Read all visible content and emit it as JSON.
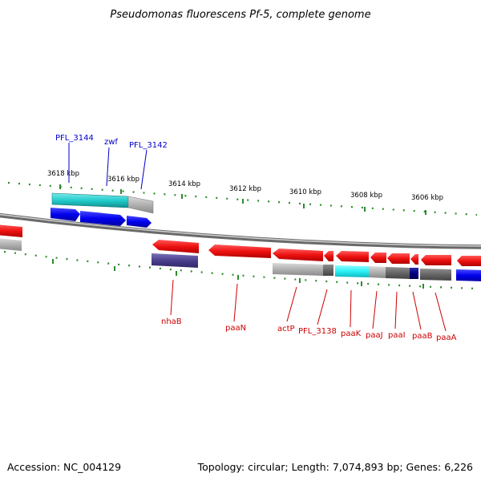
{
  "title": "Pseudomonas fluorescens Pf-5, complete genome",
  "footer": {
    "accession": "Accession: NC_004129",
    "summary": "Topology: circular; Length: 7,074,893 bp; Genes: 6,226"
  },
  "colors": {
    "tick": "#2e8b2e",
    "backbone": "#8a8a8a",
    "forward_label": "#0000cc",
    "reverse_label": "#cc0000",
    "red_gene": "#ee1111",
    "blue_gene": "#0000ee",
    "cyan_feature": "#22cccc",
    "grey_feature": "#a8a8a8",
    "dark_grey_feature": "#666666",
    "navy_feature": "#000080",
    "purple_feature": "#4a3f8c"
  },
  "scale": {
    "ticks": [
      {
        "label": "3618 kbp"
      },
      {
        "label": "3616 kbp"
      },
      {
        "label": "3614 kbp"
      },
      {
        "label": "3612 kbp"
      },
      {
        "label": "3610 kbp"
      },
      {
        "label": "3608 kbp"
      },
      {
        "label": "3606 kbp"
      }
    ]
  },
  "genes": {
    "forward_labels": [
      {
        "name": "PFL_3144"
      },
      {
        "name": "zwf"
      },
      {
        "name": "PFL_3142"
      }
    ],
    "reverse_labels": [
      {
        "name": "nhaB"
      },
      {
        "name": "paaN"
      },
      {
        "name": "actP"
      },
      {
        "name": "PFL_3138"
      },
      {
        "name": "paaK"
      },
      {
        "name": "paaJ"
      },
      {
        "name": "paaI"
      },
      {
        "name": "paaB"
      },
      {
        "name": "paaA"
      }
    ]
  }
}
